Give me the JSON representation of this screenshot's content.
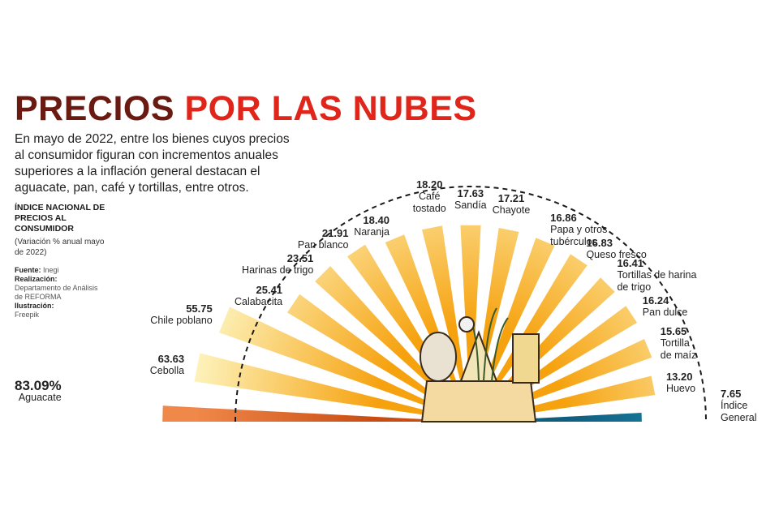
{
  "header": {
    "title_part1": "PRECIOS",
    "title_part2": "POR LAS NUBES",
    "intro": "En mayo de 2022, entre los bienes cuyos precios al consumidor figuran con incrementos anuales superiores a la inflación general destacan el aguacate, pan, café y tortillas, entre otros."
  },
  "sidebar": {
    "index_title": "ÍNDICE NACIONAL DE PRECIOS AL CONSUMIDOR",
    "index_note": "(Variación % anual mayo de 2022)",
    "source_label": "Fuente:",
    "source_value": "Inegi",
    "made_label": "Realización:",
    "made_value": "Departamento de Análisis de REFORMA",
    "illus_label": "Ilustración:",
    "illus_value": "Freepik"
  },
  "colors": {
    "title_dark": "#6b1a12",
    "title_red": "#e0261b",
    "ray_outer": "#fdf1b8",
    "ray_inner": "#f6a20f",
    "avocado_outer": "#f0884a",
    "avocado_inner": "#c94d12",
    "general_outer": "#1e8fb6",
    "general_inner": "#0f5e7e",
    "arc": "#1a1a1a"
  },
  "illustration": "grocery-bag-icon",
  "chart_data": {
    "type": "bar",
    "layout": "radial-sunburst",
    "categories": [
      "Aguacate",
      "Cebolla",
      "Chile poblano",
      "Calabacita",
      "Harinas de trigo",
      "Pan blanco",
      "Naranja",
      "Café tostado",
      "Sandía",
      "Chayote",
      "Papa y otros tubérculos",
      "Queso fresco",
      "Tortillas de harina de trigo",
      "Pan dulce",
      "Tortilla de maíz",
      "Huevo",
      "Índice General"
    ],
    "values": [
      83.09,
      63.63,
      55.75,
      25.41,
      23.51,
      21.91,
      18.4,
      18.2,
      17.63,
      17.21,
      16.86,
      16.83,
      16.41,
      16.24,
      15.65,
      13.2,
      7.65
    ],
    "value_labels": [
      "83.09%",
      "63.63",
      "55.75",
      "25.41",
      "23.51",
      "21.91",
      "18.40",
      "18.20",
      "17.63",
      "17.21",
      "16.86",
      "16.83",
      "16.41",
      "16.24",
      "15.65",
      "13.20",
      "7.65"
    ],
    "label_lines": [
      [
        "Aguacate"
      ],
      [
        "Cebolla"
      ],
      [
        "Chile poblano"
      ],
      [
        "Calabacita"
      ],
      [
        "Harinas de trigo"
      ],
      [
        "Pan blanco"
      ],
      [
        "Naranja"
      ],
      [
        "Café",
        "tostado"
      ],
      [
        "Sandía"
      ],
      [
        "Chayote"
      ],
      [
        "Papa y otros",
        "tubérculos"
      ],
      [
        "Queso fresco"
      ],
      [
        "Tortillas de harina",
        "de trigo"
      ],
      [
        "Pan dulce"
      ],
      [
        "Tortilla",
        "de maíz"
      ],
      [
        "Huevo"
      ],
      [
        "Índice",
        "General"
      ]
    ],
    "title": "PRECIOS POR LAS NUBES",
    "unit": "Variación % anual mayo de 2022",
    "highlight": {
      "Aguacate": "orange",
      "Índice General": "blue"
    }
  }
}
